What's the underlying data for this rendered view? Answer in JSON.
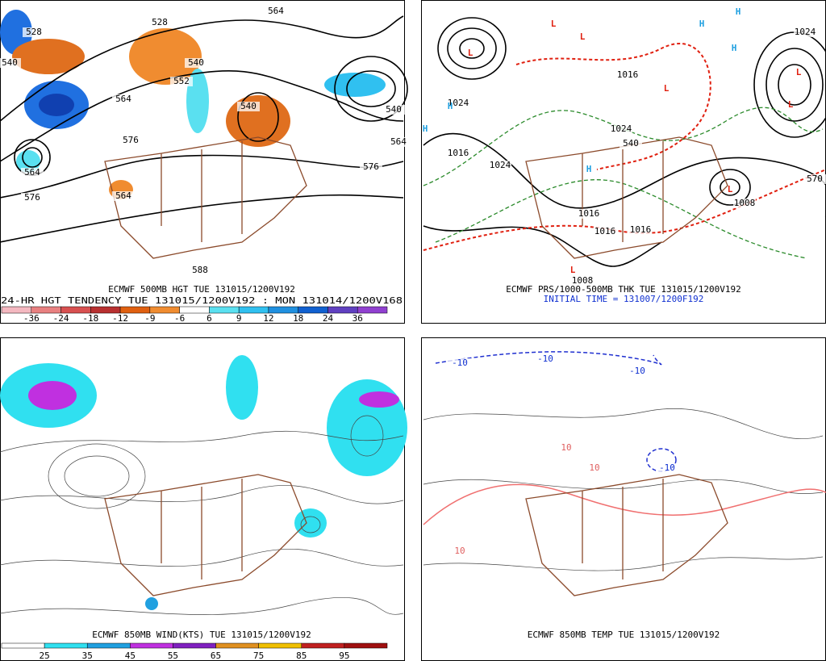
{
  "panels": [
    {
      "title": "ECMWF 500MB HGT TUE 131015/1200V192",
      "subtitle": "24-HR HGT TENDENCY TUE 131015/1200V192 : MON 131014/1200V168",
      "colorbar": {
        "labels": [
          -36,
          -24,
          -18,
          -12,
          -9,
          -6,
          6,
          9,
          12,
          18,
          24,
          36
        ],
        "colors": [
          "#f4b8c0",
          "#e88080",
          "#d85050",
          "#b83030",
          "#e06010",
          "#f08c30",
          "#ffffff",
          "#5ae0f0",
          "#30c0f0",
          "#2090e0",
          "#1060d0",
          "#6040c0",
          "#9040d0"
        ]
      },
      "contour_labels": [
        "528",
        "540",
        "528",
        "540",
        "552",
        "564",
        "576",
        "564",
        "576",
        "564",
        "540",
        "540",
        "564",
        "576",
        "564",
        "588"
      ]
    },
    {
      "title": "ECMWF PRS/1000-500MB THK TUE 131015/1200V192",
      "subtitle": "INITIAL TIME = 131007/1200F192",
      "contour_labels": [
        "1024",
        "1016",
        "1024",
        "1016",
        "1024",
        "1016",
        "1016",
        "1016",
        "1008",
        "1008",
        "1024",
        "570",
        "540"
      ],
      "lows": [
        "L",
        "L",
        "L",
        "L",
        "L",
        "L",
        "L",
        "L"
      ],
      "highs": [
        "H",
        "H",
        "H",
        "H",
        "H",
        "H"
      ]
    },
    {
      "title": "ECMWF 850MB WIND(KTS) TUE 131015/1200V192",
      "colorbar": {
        "labels": [
          25,
          35,
          45,
          55,
          65,
          75,
          85,
          95
        ],
        "colors": [
          "#ffffff",
          "#30e0f0",
          "#20a0e0",
          "#c030e0",
          "#8020c0",
          "#e09020",
          "#f0c000",
          "#c02020",
          "#a01010"
        ]
      }
    },
    {
      "title": "ECMWF 850MB TEMP TUE 131015/1200V192",
      "contour_labels": [
        "-10",
        "-10",
        "-10",
        "-10",
        "10",
        "10",
        "10"
      ]
    }
  ]
}
